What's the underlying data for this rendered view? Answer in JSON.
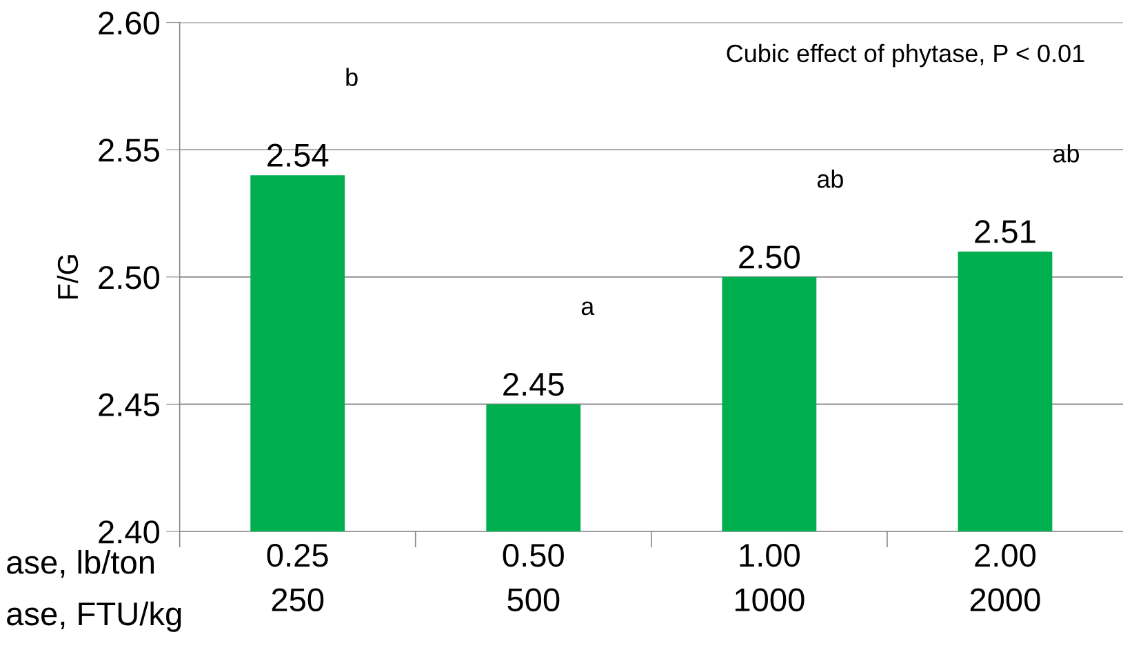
{
  "chart_data": {
    "type": "bar",
    "ylabel": "F/G",
    "categories": [
      "0.25\n250",
      "0.50\n500",
      "1.00\n1000",
      "2.00\n2000"
    ],
    "values": [
      2.54,
      2.45,
      2.5,
      2.51
    ],
    "color": "#00b050",
    "ylim": [
      2.4,
      2.6
    ],
    "yticks": [
      {
        "value": 2.4,
        "label": "2.40"
      },
      {
        "value": 2.45,
        "label": "2.45"
      },
      {
        "value": 2.5,
        "label": "2.50"
      },
      {
        "value": 2.55,
        "label": "2.55"
      },
      {
        "value": 2.6,
        "label": "2.60"
      }
    ],
    "grid": "y",
    "data_labels": true,
    "value_labels": [
      "2.54",
      "2.45",
      "2.50",
      "2.51"
    ],
    "annotations": [
      "Cubic effect of phytase, P < 0.01",
      "ase, lb/ton",
      "ase, FTU/kg",
      "b",
      "a",
      "ab",
      "ab"
    ]
  }
}
